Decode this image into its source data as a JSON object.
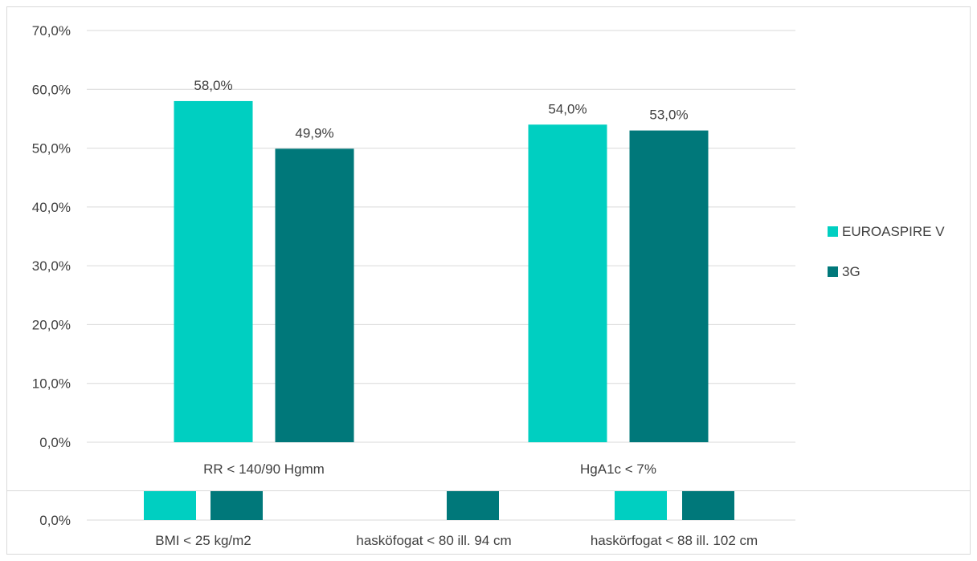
{
  "chart_data": [
    {
      "type": "bar",
      "categories": [
        "RR < 140/90 Hgmm",
        "HgA1c < 7%"
      ],
      "series": [
        {
          "name": "EUROASPIRE V",
          "values": [
            58.0,
            54.0
          ]
        },
        {
          "name": "3G",
          "values": [
            49.9,
            53.0
          ]
        }
      ],
      "data_labels": [
        [
          "58,0%",
          "54,0%"
        ],
        [
          "49,9%",
          "53,0%"
        ]
      ],
      "y_ticks": [
        "0,0%",
        "10,0%",
        "20,0%",
        "30,0%",
        "40,0%",
        "50,0%",
        "60,0%",
        "70,0%"
      ],
      "ylim": [
        0,
        70
      ],
      "grid": true,
      "legend": "right",
      "colors": {
        "EUROASPIRE V": "#00CFC1",
        "3G": "#00787A"
      }
    },
    {
      "type": "bar",
      "categories": [
        "BMI < 25 kg/m2",
        "hasköfogat < 80 ill. 94 cm",
        "haskörfogat < 88 ill. 102 cm"
      ],
      "series": [
        {
          "name": "EUROASPIRE V",
          "values": [
            null,
            null,
            null
          ]
        },
        {
          "name": "3G",
          "values": [
            null,
            null,
            null
          ]
        }
      ],
      "y_ticks": [
        "0,0%"
      ],
      "note_partial": true,
      "colors": {
        "EUROASPIRE V": "#00CFC1",
        "3G": "#00787A"
      }
    }
  ]
}
